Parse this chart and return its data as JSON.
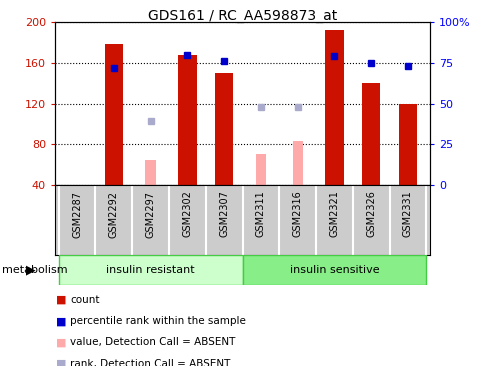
{
  "title": "GDS161 / RC_AA598873_at",
  "categories": [
    "GSM2287",
    "GSM2292",
    "GSM2297",
    "GSM2302",
    "GSM2307",
    "GSM2311",
    "GSM2316",
    "GSM2321",
    "GSM2326",
    "GSM2331"
  ],
  "red_bars": [
    null,
    178,
    null,
    168,
    150,
    null,
    null,
    192,
    140,
    120
  ],
  "pink_bars": [
    null,
    null,
    65,
    null,
    null,
    70,
    83,
    null,
    null,
    null
  ],
  "blue_squares": [
    null,
    155,
    null,
    168,
    162,
    null,
    null,
    167,
    160,
    157
  ],
  "lightblue_squares": [
    null,
    null,
    103,
    null,
    null,
    117,
    117,
    null,
    null,
    null
  ],
  "ylim": [
    40,
    200
  ],
  "y2lim": [
    0,
    100
  ],
  "yticks": [
    40,
    80,
    120,
    160,
    200
  ],
  "y2ticks": [
    0,
    25,
    50,
    75,
    100
  ],
  "y2ticklabels": [
    "0",
    "25",
    "50",
    "75",
    "100%"
  ],
  "bar_width": 0.5,
  "pink_bar_width": 0.28,
  "red_color": "#cc1100",
  "pink_color": "#ffaaaa",
  "blue_color": "#0000cc",
  "lightblue_color": "#aaaacc",
  "n_insulin_resistant": 5,
  "n_insulin_sensitive": 5,
  "group_ir_label": "insulin resistant",
  "group_is_label": "insulin sensitive",
  "group_label": "metabolism",
  "ir_color": "#ccffcc",
  "is_color": "#88ee88",
  "ir_edge_color": "#44cc44",
  "xtick_bg": "#cccccc",
  "legend_items": [
    {
      "label": "count",
      "color": "#cc1100"
    },
    {
      "label": "percentile rank within the sample",
      "color": "#0000cc"
    },
    {
      "label": "value, Detection Call = ABSENT",
      "color": "#ffaaaa"
    },
    {
      "label": "rank, Detection Call = ABSENT",
      "color": "#aaaacc"
    }
  ]
}
